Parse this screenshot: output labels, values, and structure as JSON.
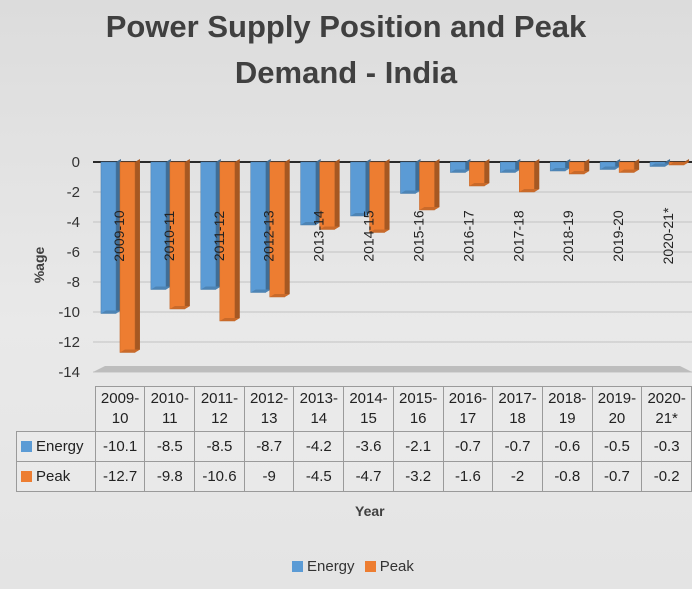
{
  "chart_data": {
    "type": "bar",
    "title_line1": "Power Supply Position and Peak",
    "title_line2": "Demand - India",
    "xlabel": "Year",
    "ylabel": "%age",
    "ylim": [
      -14,
      0
    ],
    "yticks": [
      "0",
      "-2",
      "-4",
      "-6",
      "-8",
      "-10",
      "-12",
      "-14"
    ],
    "categories": [
      "2009-10",
      "2010-11",
      "2011-12",
      "2012-13",
      "2013-14",
      "2014-15",
      "2015-16",
      "2016-17",
      "2017-18",
      "2018-19",
      "2019-20",
      "2020-21*"
    ],
    "category_lines": [
      [
        "2009-",
        "10"
      ],
      [
        "2010-",
        "11"
      ],
      [
        "2011-",
        "12"
      ],
      [
        "2012-",
        "13"
      ],
      [
        "2013-",
        "14"
      ],
      [
        "2014-",
        "15"
      ],
      [
        "2015-",
        "16"
      ],
      [
        "2016-",
        "17"
      ],
      [
        "2017-",
        "18"
      ],
      [
        "2018-",
        "19"
      ],
      [
        "2019-",
        "20"
      ],
      [
        "2020-",
        "21*"
      ]
    ],
    "series": [
      {
        "name": "Energy",
        "color": "#5b9bd5",
        "values": [
          -10.1,
          -8.5,
          -8.5,
          -8.7,
          -4.2,
          -3.6,
          -2.1,
          -0.7,
          -0.7,
          -0.6,
          -0.5,
          -0.3
        ]
      },
      {
        "name": "Peak",
        "color": "#ed7d31",
        "values": [
          -12.7,
          -9.8,
          -10.6,
          -9,
          -4.5,
          -4.7,
          -3.2,
          -1.6,
          -2,
          -0.8,
          -0.7,
          -0.2
        ]
      }
    ],
    "value_labels": {
      "Energy": [
        "-10.1",
        "-8.5",
        "-8.5",
        "-8.7",
        "-4.2",
        "-3.6",
        "-2.1",
        "-0.7",
        "-0.7",
        "-0.6",
        "-0.5",
        "-0.3"
      ],
      "Peak": [
        "-12.7",
        "-9.8",
        "-10.6",
        "-9",
        "-4.5",
        "-4.7",
        "-3.2",
        "-1.6",
        "-2",
        "-0.8",
        "-0.7",
        "-0.2"
      ]
    },
    "grid": true,
    "legend_position": "bottom",
    "data_table": true
  }
}
